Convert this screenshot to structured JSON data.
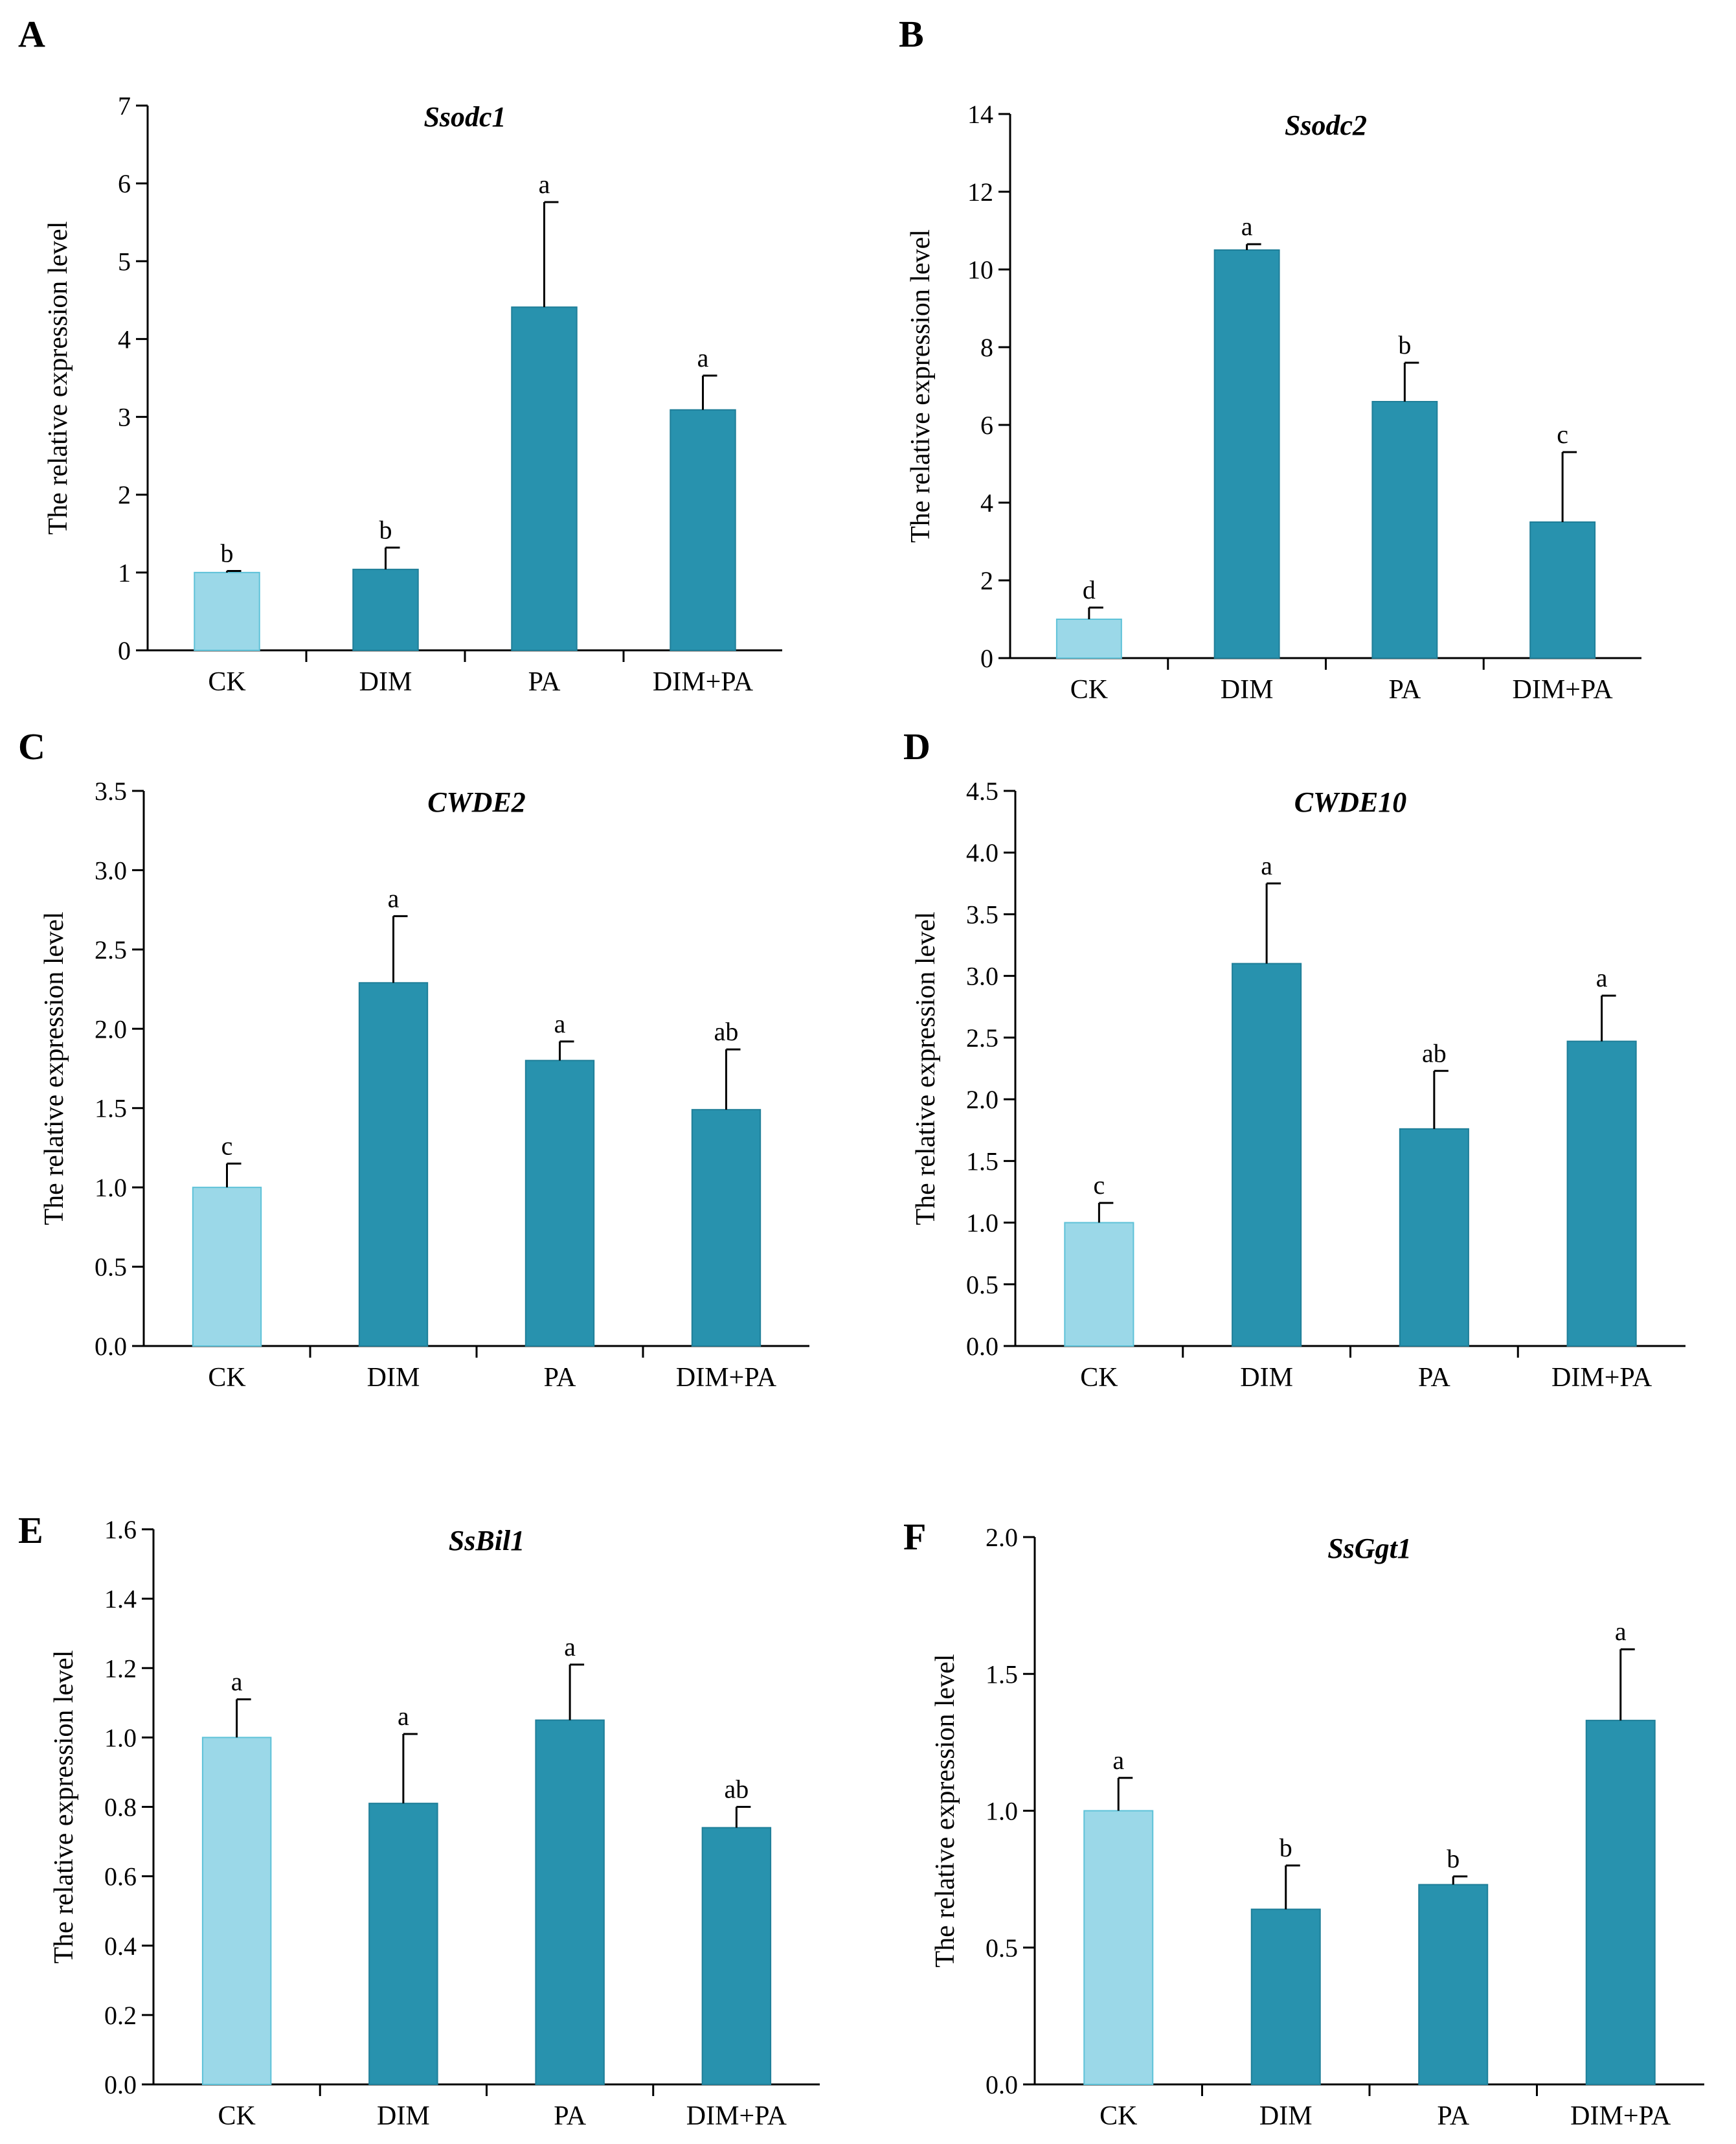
{
  "figure": {
    "colors": {
      "control": "#9bd8e8",
      "treatment": "#2892ae",
      "axis": "#000000"
    },
    "panels": [
      {
        "id": "A",
        "letter": "A",
        "chart_data": {
          "type": "bar",
          "title": "Ssodc1",
          "xlabel": "",
          "ylabel": "The relative expression level",
          "categories": [
            "CK",
            "DIM",
            "PA",
            "DIM+PA"
          ],
          "values": [
            1.0,
            1.04,
            4.41,
            3.09
          ],
          "errors": [
            0.02,
            0.28,
            1.35,
            0.44
          ],
          "significance": [
            "b",
            "b",
            "a",
            "a"
          ],
          "ylim": [
            0,
            7
          ],
          "yticks": [
            "0",
            "1",
            "2",
            "3",
            "4",
            "5",
            "6",
            "7"
          ],
          "grid": false
        }
      },
      {
        "id": "B",
        "letter": "B",
        "chart_data": {
          "type": "bar",
          "title": "Ssodc2",
          "xlabel": "",
          "ylabel": "The relative expression level",
          "categories": [
            "CK",
            "DIM",
            "PA",
            "DIM+PA"
          ],
          "values": [
            1.0,
            10.5,
            6.6,
            3.5
          ],
          "errors": [
            0.3,
            0.15,
            1.0,
            1.8
          ],
          "significance": [
            "d",
            "a",
            "b",
            "c"
          ],
          "ylim": [
            0,
            14
          ],
          "yticks": [
            "0",
            "2",
            "4",
            "6",
            "8",
            "10",
            "12",
            "14"
          ],
          "grid": false
        }
      },
      {
        "id": "C",
        "letter": "C",
        "chart_data": {
          "type": "bar",
          "title": "CWDE2",
          "xlabel": "",
          "ylabel": "The relative expression level",
          "categories": [
            "CK",
            "DIM",
            "PA",
            "DIM+PA"
          ],
          "values": [
            1.0,
            2.29,
            1.8,
            1.49
          ],
          "errors": [
            0.15,
            0.42,
            0.12,
            0.38
          ],
          "significance": [
            "c",
            "a",
            "a",
            "ab"
          ],
          "ylim": [
            0,
            3.5
          ],
          "yticks": [
            "0.0",
            "0.5",
            "1.0",
            "1.5",
            "2.0",
            "2.5",
            "3.0",
            "3.5"
          ],
          "grid": false
        }
      },
      {
        "id": "D",
        "letter": "D",
        "chart_data": {
          "type": "bar",
          "title": "CWDE10",
          "xlabel": "",
          "ylabel": "The relative expression level",
          "categories": [
            "CK",
            "DIM",
            "PA",
            "DIM+PA"
          ],
          "values": [
            1.0,
            3.1,
            1.76,
            2.47
          ],
          "errors": [
            0.16,
            0.65,
            0.47,
            0.37
          ],
          "significance": [
            "c",
            "a",
            "ab",
            "a"
          ],
          "ylim": [
            0,
            4.5
          ],
          "yticks": [
            "0.0",
            "0.5",
            "1.0",
            "1.5",
            "2.0",
            "2.5",
            "3.0",
            "3.5",
            "4.0",
            "4.5"
          ],
          "grid": false
        }
      },
      {
        "id": "E",
        "letter": "E",
        "chart_data": {
          "type": "bar",
          "title": "SsBil1",
          "xlabel": "",
          "ylabel": "The relative expression level",
          "categories": [
            "CK",
            "DIM",
            "PA",
            "DIM+PA"
          ],
          "values": [
            1.0,
            0.81,
            1.05,
            0.74
          ],
          "errors": [
            0.11,
            0.2,
            0.16,
            0.06
          ],
          "significance": [
            "a",
            "a",
            "a",
            "ab"
          ],
          "ylim": [
            0,
            1.6
          ],
          "yticks": [
            "0.0",
            "0.2",
            "0.4",
            "0.6",
            "0.8",
            "1.0",
            "1.2",
            "1.4",
            "1.6"
          ],
          "grid": false
        }
      },
      {
        "id": "F",
        "letter": "F",
        "chart_data": {
          "type": "bar",
          "title": "SsGgt1",
          "xlabel": "",
          "ylabel": "The relative expression level",
          "categories": [
            "CK",
            "DIM",
            "PA",
            "DIM+PA"
          ],
          "values": [
            1.0,
            0.64,
            0.73,
            1.33
          ],
          "errors": [
            0.12,
            0.16,
            0.03,
            0.26
          ],
          "significance": [
            "a",
            "b",
            "b",
            "a"
          ],
          "ylim": [
            0,
            2.0
          ],
          "yticks": [
            "0.0",
            "0.5",
            "1.0",
            "1.5",
            "2.0"
          ],
          "grid": false
        }
      }
    ]
  }
}
